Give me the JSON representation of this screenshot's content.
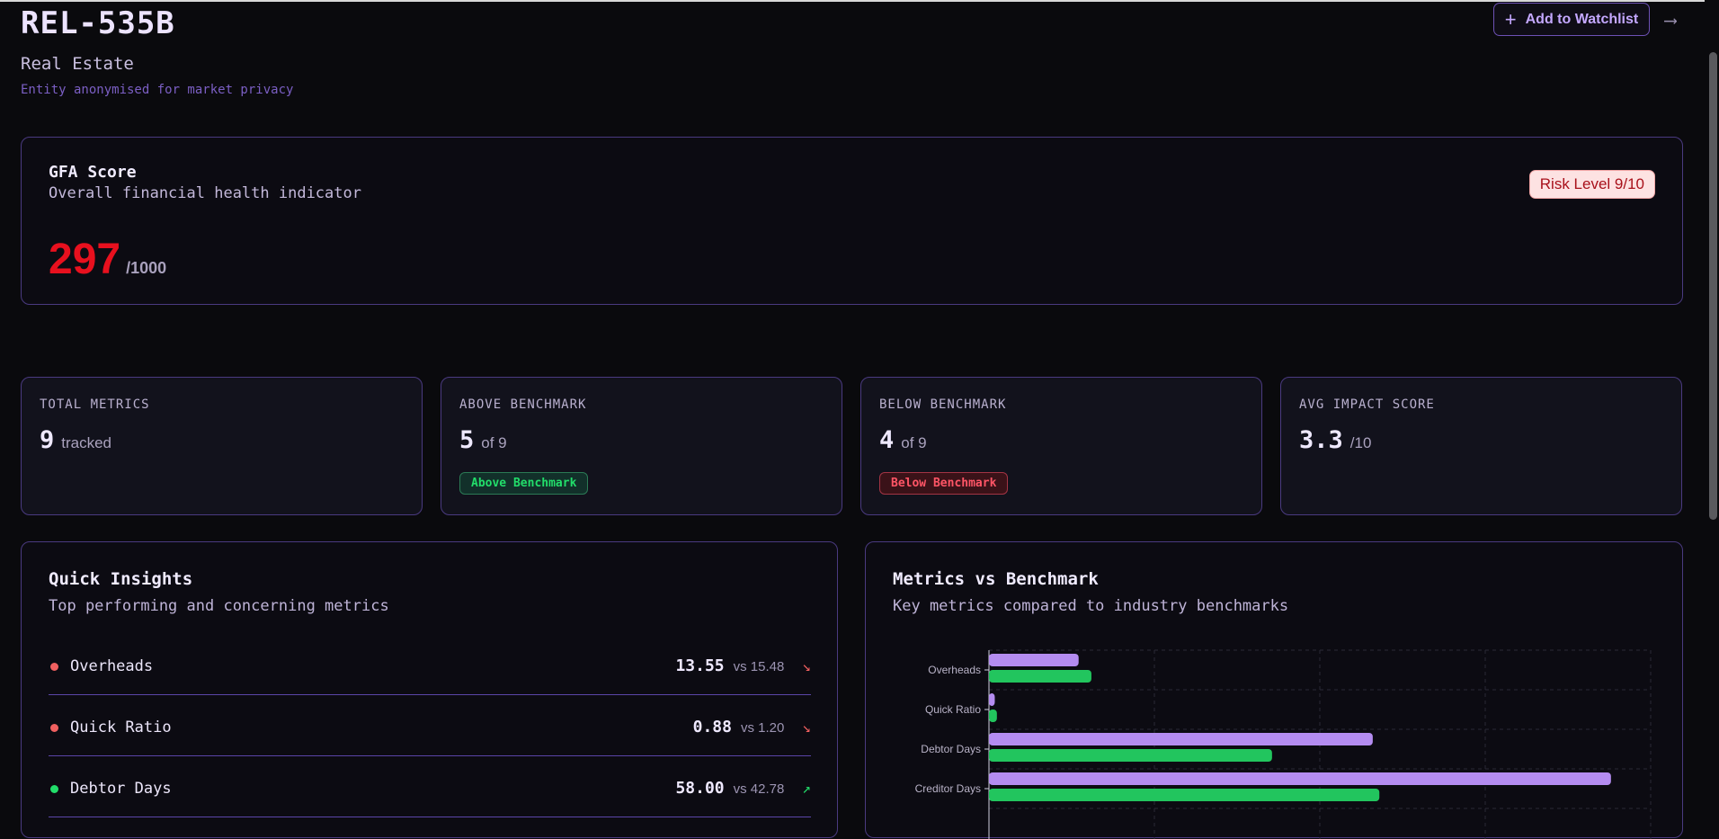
{
  "header": {
    "entity_id": "REL-535B",
    "sector": "Real Estate",
    "note": "Entity anonymised for market privacy",
    "watchlist_label": "Add to Watchlist",
    "watchlist_icon": "plus-icon",
    "export_icon": "arrow-right-icon"
  },
  "gfa": {
    "title": "GFA Score",
    "subtitle": "Overall financial health indicator",
    "score": "297",
    "max": "/1000",
    "risk": "Risk Level 9/10",
    "score_color": "#e8101e"
  },
  "stats": [
    {
      "label": "TOTAL METRICS",
      "value": "9",
      "unit": "tracked"
    },
    {
      "label": "ABOVE BENCHMARK",
      "value": "5",
      "unit": "of 9",
      "tag": "Above Benchmark"
    },
    {
      "label": "BELOW BENCHMARK",
      "value": "4",
      "unit": "of 9",
      "tag": "Below Benchmark"
    },
    {
      "label": "AVG IMPACT SCORE",
      "value": "3.3",
      "unit": "/10"
    }
  ],
  "insights": {
    "title": "Quick Insights",
    "subtitle": "Top performing and concerning metrics",
    "items": [
      {
        "name": "Overheads",
        "value": "13.55",
        "bench": "vs 15.48",
        "status": "negative",
        "arrow": "↘"
      },
      {
        "name": "Quick Ratio",
        "value": "0.88",
        "bench": "vs 1.20",
        "status": "negative",
        "arrow": "↘"
      },
      {
        "name": "Debtor Days",
        "value": "58.00",
        "bench": "vs 42.78",
        "status": "positive",
        "arrow": "↗"
      }
    ]
  },
  "benchmark": {
    "title": "Metrics vs Benchmark",
    "subtitle": "Key metrics compared to industry benchmarks"
  },
  "colors": {
    "accent": "#7b5fc4",
    "company_bar": "#b48cf0",
    "benchmark_bar": "#22c55e",
    "negative": "#f06060",
    "positive": "#22dd6a"
  },
  "chart_data": {
    "type": "bar",
    "orientation": "horizontal",
    "categories": [
      "Overheads",
      "Quick Ratio",
      "Debtor Days",
      "Creditor Days"
    ],
    "series": [
      {
        "values": [
          13.55,
          0.88,
          58.0,
          94.0
        ]
      },
      {
        "values": [
          15.48,
          1.2,
          42.78,
          59.0
        ]
      }
    ],
    "xlim": [
      0,
      100
    ],
    "grid": true
  }
}
